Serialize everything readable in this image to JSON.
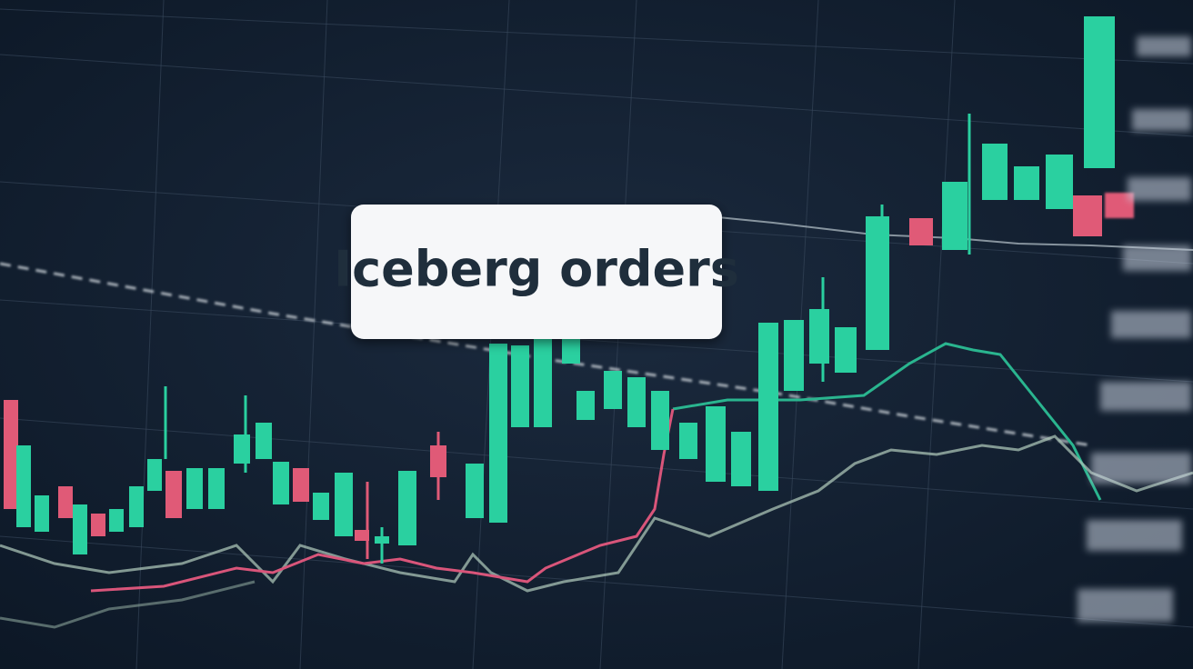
{
  "label": "Iceberg orders"
}
